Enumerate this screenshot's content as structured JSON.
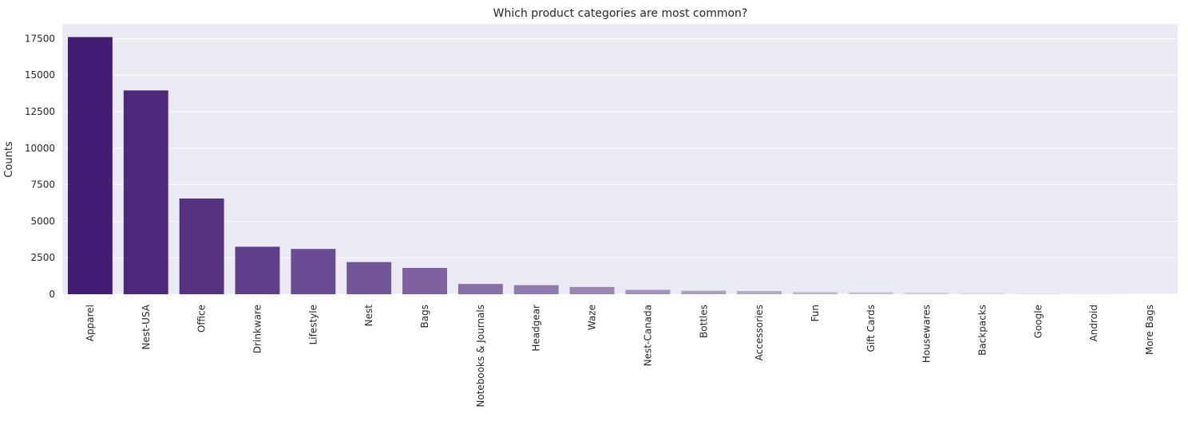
{
  "chart_data": {
    "type": "bar",
    "title": "Which product categories are most common?",
    "xlabel": "",
    "ylabel": "Counts",
    "categories": [
      "Apparel",
      "Nest-USA",
      "Office",
      "Drinkware",
      "Lifestyle",
      "Nest",
      "Bags",
      "Notebooks & Journals",
      "Headgear",
      "Waze",
      "Nest-Canada",
      "Bottles",
      "Accessories",
      "Fun",
      "Gift Cards",
      "Housewares",
      "Backpacks",
      "Google",
      "Android",
      "More Bags"
    ],
    "values": [
      17600,
      13950,
      6550,
      3250,
      3100,
      2200,
      1800,
      700,
      620,
      500,
      300,
      240,
      220,
      150,
      140,
      110,
      100,
      60,
      50,
      40
    ],
    "ylim": [
      0,
      18500
    ],
    "yticks": [
      0,
      2500,
      5000,
      7500,
      10000,
      12500,
      15000,
      17500
    ],
    "ytick_labels": [
      "0",
      "2500",
      "5000",
      "7500",
      "10000",
      "12500",
      "15000",
      "17500"
    ],
    "grid": true,
    "palette": {
      "background": "#eaeaf2",
      "grid": "#ffffff",
      "bar_start": "#431c74",
      "bar_end": "#fbfafd"
    }
  }
}
